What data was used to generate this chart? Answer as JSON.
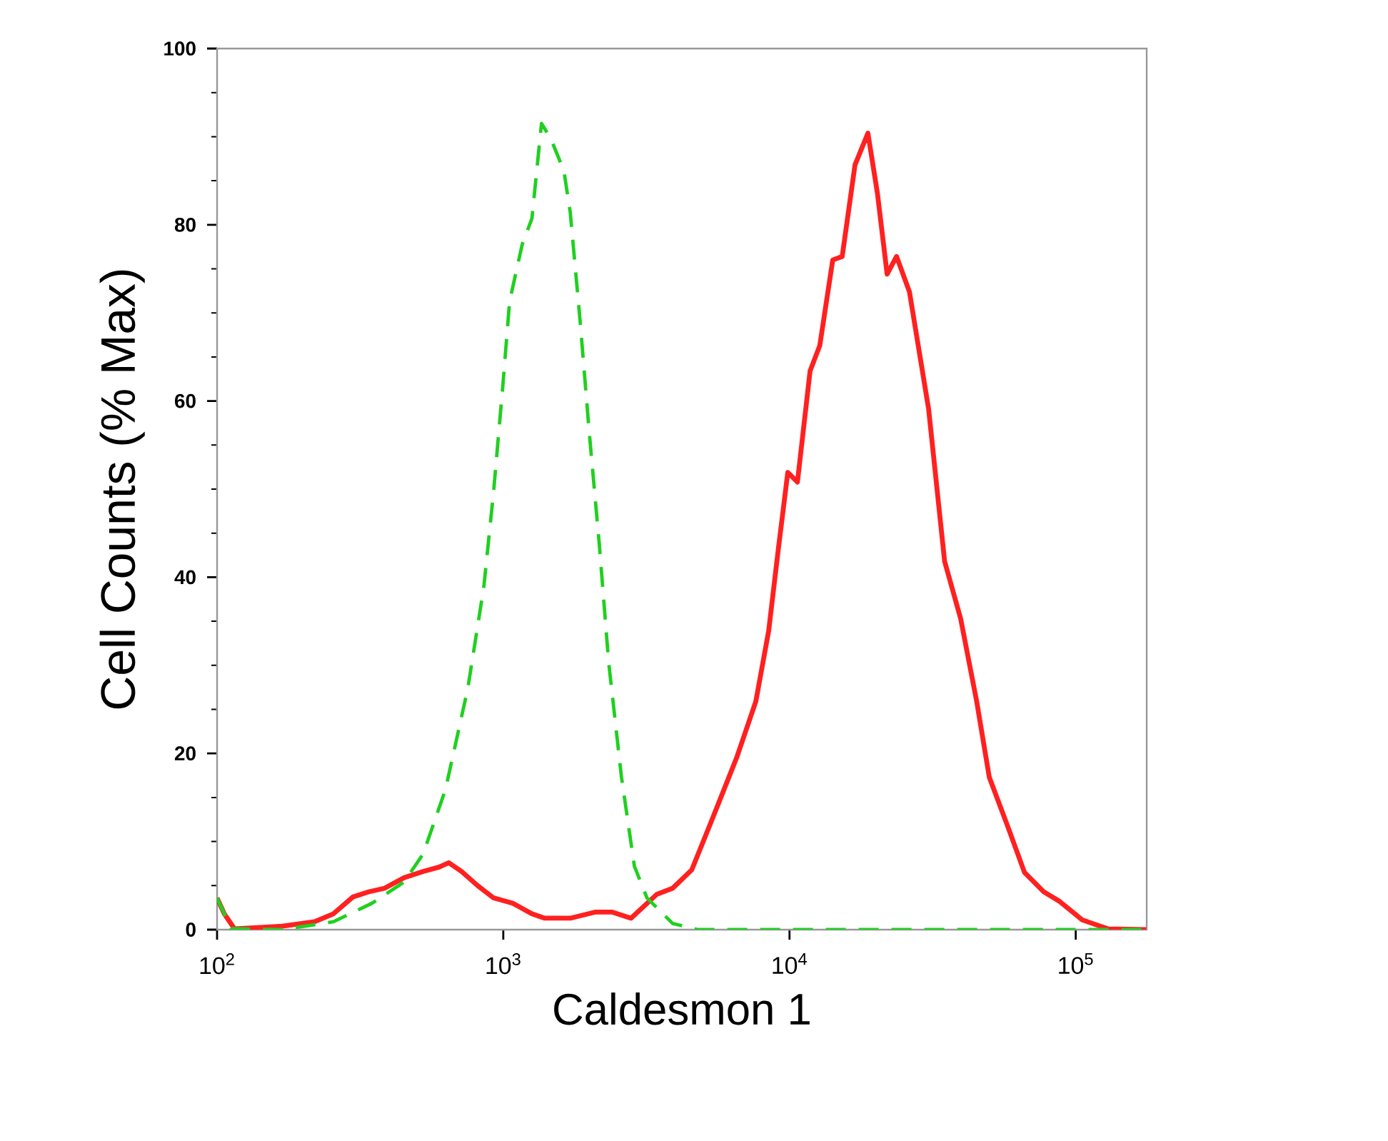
{
  "chart_data": {
    "type": "line",
    "xlabel": "Caldesmon 1",
    "ylabel": "Cell Counts (% Max)",
    "log": "x",
    "xlim": [
      100,
      177000
    ],
    "ylim": [
      0,
      100
    ],
    "xticks": [
      {
        "value": 100,
        "label": "10$^{2}$"
      },
      {
        "value": 1000,
        "label": "10$^{3}$"
      },
      {
        "value": 10000,
        "label": "10$^{4}$"
      },
      {
        "value": 100000,
        "label": "10$^{5}$"
      }
    ],
    "yticks": [
      0,
      20,
      40,
      60,
      80,
      100
    ],
    "series": [
      {
        "color": "#ff2020",
        "line_style": "solid",
        "x": [
          100,
          106,
          115,
          169,
          219,
          255,
          298,
          339,
          385,
          450,
          525,
          597,
          645,
          715,
          813,
          925,
          1079,
          1259,
          1396,
          1714,
          2104,
          2395,
          2795,
          3436,
          3906,
          4558,
          5318,
          6535,
          7627,
          8456,
          9141,
          9863,
          10660,
          11800,
          12760,
          14160,
          15280,
          16940,
          18790,
          20280,
          21930,
          23660,
          26240,
          30620,
          34830,
          39630,
          45080,
          49890,
          58210,
          66220,
          77270,
          87900,
          105400,
          129400,
          176200
        ],
        "values": [
          3.6,
          1.8,
          0.1,
          0.4,
          0.9,
          1.8,
          3.7,
          4.3,
          4.7,
          5.9,
          6.6,
          7.1,
          7.6,
          6.6,
          5.0,
          3.6,
          3.0,
          1.8,
          1.3,
          1.3,
          2.0,
          2.0,
          1.3,
          4.0,
          4.7,
          6.8,
          12.2,
          19.5,
          25.9,
          33.9,
          43.2,
          51.9,
          50.8,
          63.4,
          66.3,
          76,
          76.4,
          86.8,
          90.4,
          83.6,
          74.4,
          76.4,
          72.4,
          59.1,
          41.8,
          35.3,
          25.9,
          17.3,
          11.5,
          6.5,
          4.3,
          3.2,
          1.1,
          0.1,
          0
        ]
      },
      {
        "color": "#20d020",
        "line_style": "dashed",
        "x": [
          100,
          112,
          169,
          255,
          348,
          450,
          525,
          628,
          752,
          855,
          925,
          998,
          1052,
          1165,
          1259,
          1360,
          1469,
          1629,
          1714,
          1854,
          2000,
          2163,
          2335,
          2588,
          2871,
          3178,
          3906,
          4800,
          176200
        ],
        "values": [
          3.6,
          0.1,
          0,
          0.9,
          3.0,
          5.4,
          8.6,
          15.9,
          27.4,
          38.9,
          49.7,
          62,
          71.3,
          77.8,
          80.7,
          91.5,
          89.7,
          86.1,
          81.4,
          69.2,
          56.2,
          43.9,
          30.3,
          17.3,
          7.2,
          3.6,
          0.7,
          0,
          0
        ]
      }
    ]
  }
}
